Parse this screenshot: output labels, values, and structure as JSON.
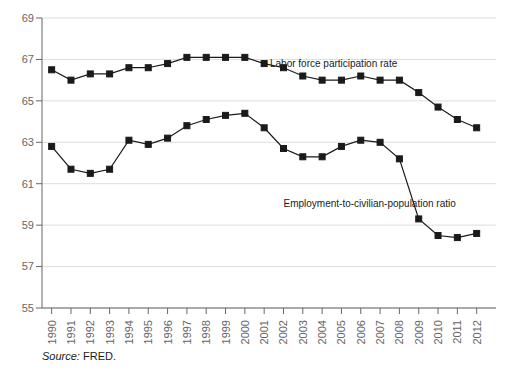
{
  "chart_data": {
    "type": "line",
    "x": [
      1990,
      1991,
      1992,
      1993,
      1994,
      1995,
      1996,
      1997,
      1998,
      1999,
      2000,
      2001,
      2002,
      2003,
      2004,
      2005,
      2006,
      2007,
      2008,
      2009,
      2010,
      2011,
      2012
    ],
    "series": [
      {
        "color": "#1a1a1a",
        "marker": "square",
        "values": [
          66.5,
          66.0,
          66.3,
          66.3,
          66.6,
          66.6,
          66.8,
          67.1,
          67.1,
          67.1,
          67.1,
          66.8,
          66.6,
          66.2,
          66.0,
          66.0,
          66.2,
          66.0,
          66.0,
          65.4,
          64.7,
          64.1,
          63.7
        ]
      },
      {
        "color": "#1a1a1a",
        "marker": "square",
        "values": [
          62.8,
          61.7,
          61.5,
          61.7,
          63.1,
          62.9,
          63.2,
          63.8,
          64.1,
          64.3,
          64.4,
          63.7,
          62.7,
          62.3,
          62.3,
          62.8,
          63.1,
          63.0,
          62.2,
          59.3,
          58.5,
          58.4,
          58.6
        ]
      }
    ],
    "annotations": [
      {
        "text": "Labor force participation rate",
        "x": 2001.3,
        "y": 66.55,
        "color": "#1a1a1a"
      },
      {
        "text": "Employment-to-civilian-population ratio",
        "x": 2002.0,
        "y": 60.3,
        "color": "#1a1a1a"
      }
    ],
    "source": "Source: FRED.",
    "xlim": [
      1989.5,
      2013.0
    ],
    "xticks": [
      1990,
      1991,
      1992,
      1993,
      1994,
      1995,
      1996,
      1997,
      1998,
      1999,
      2000,
      2001,
      2002,
      2003,
      2004,
      2005,
      2006,
      2007,
      2008,
      2009,
      2010,
      2011,
      2012
    ],
    "ylim": [
      55,
      69
    ],
    "yticks": [
      55,
      57,
      59,
      61,
      63,
      65,
      67,
      69
    ],
    "grid": true
  }
}
